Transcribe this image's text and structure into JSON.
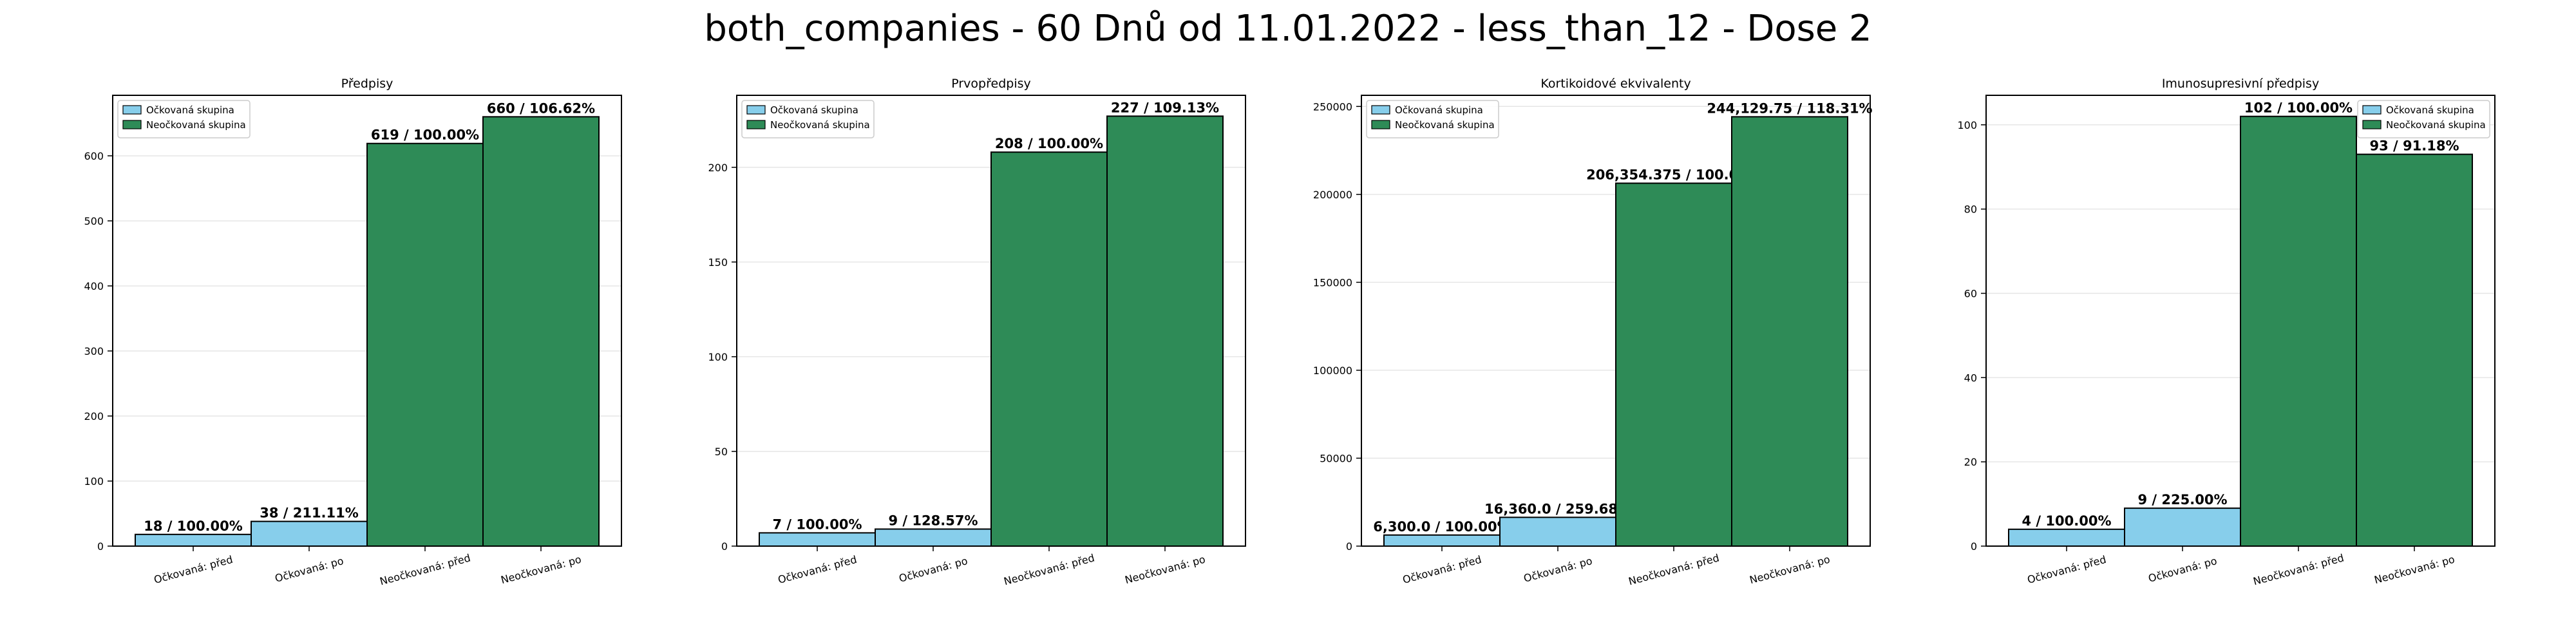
{
  "figure": {
    "suptitle": "both_companies - 60 Dnů od 11.01.2022 - less_than_12 - Dose 2"
  },
  "colors": {
    "vaccinated": "#87ceeb",
    "unvaccinated": "#2e8b57",
    "edge": "#000000",
    "grid": "#e6e6e6"
  },
  "chart_data": [
    {
      "type": "bar",
      "title": "Předpisy",
      "categories": [
        "Očkovaná: před",
        "Očkovaná: po",
        "Neočkovaná: před",
        "Neočkovaná: po"
      ],
      "values": [
        18,
        38,
        619,
        660
      ],
      "groups": [
        "Očkovaná skupina",
        "Očkovaná skupina",
        "Neočkovaná skupina",
        "Neočkovaná skupina"
      ],
      "labels": [
        "18 / 100.00%",
        "38 / 211.11%",
        "619 / 100.00%",
        "660 / 106.62%"
      ],
      "yticks": [
        0,
        100,
        200,
        300,
        400,
        500,
        600
      ],
      "ylim": [
        0,
        693
      ],
      "legend": [
        "Očkovaná skupina",
        "Neočkovaná skupina"
      ],
      "legend_loc": "upper left",
      "grid": true
    },
    {
      "type": "bar",
      "title": "Prvopředpisy",
      "categories": [
        "Očkovaná: před",
        "Očkovaná: po",
        "Neočkovaná: před",
        "Neočkovaná: po"
      ],
      "values": [
        7,
        9,
        208,
        227
      ],
      "groups": [
        "Očkovaná skupina",
        "Očkovaná skupina",
        "Neočkovaná skupina",
        "Neočkovaná skupina"
      ],
      "labels": [
        "7 / 100.00%",
        "9 / 128.57%",
        "208 / 100.00%",
        "227 / 109.13%"
      ],
      "yticks": [
        0,
        50,
        100,
        150,
        200
      ],
      "ylim": [
        0,
        238
      ],
      "legend": [
        "Očkovaná skupina",
        "Neočkovaná skupina"
      ],
      "legend_loc": "upper left",
      "grid": true
    },
    {
      "type": "bar",
      "title": "Kortikoidové ekvivalenty",
      "categories": [
        "Očkovaná: před",
        "Očkovaná: po",
        "Neočkovaná: před",
        "Neočkovaná: po"
      ],
      "values": [
        6300.0,
        16360.0,
        206354.375,
        244129.75
      ],
      "groups": [
        "Očkovaná skupina",
        "Očkovaná skupina",
        "Neočkovaná skupina",
        "Neočkovaná skupina"
      ],
      "labels": [
        "6,300.0 / 100.00%",
        "16,360.0 / 259.68%",
        "206,354.375 / 100.00%",
        "244,129.75 / 118.31%"
      ],
      "yticks": [
        0,
        50000,
        100000,
        150000,
        200000,
        250000
      ],
      "ylim": [
        0,
        256336
      ],
      "legend": [
        "Očkovaná skupina",
        "Neočkovaná skupina"
      ],
      "legend_loc": "upper left",
      "grid": true
    },
    {
      "type": "bar",
      "title": "Imunosupresivní předpisy",
      "categories": [
        "Očkovaná: před",
        "Očkovaná: po",
        "Neočkovaná: před",
        "Neočkovaná: po"
      ],
      "values": [
        4,
        9,
        102,
        93
      ],
      "groups": [
        "Očkovaná skupina",
        "Očkovaná skupina",
        "Neočkovaná skupina",
        "Neočkovaná skupina"
      ],
      "labels": [
        "4 / 100.00%",
        "9 / 225.00%",
        "102 / 100.00%",
        "93 / 91.18%"
      ],
      "yticks": [
        0,
        20,
        40,
        60,
        80,
        100
      ],
      "ylim": [
        0,
        107
      ],
      "legend": [
        "Očkovaná skupina",
        "Neočkovaná skupina"
      ],
      "legend_loc": "upper right",
      "grid": true
    }
  ]
}
